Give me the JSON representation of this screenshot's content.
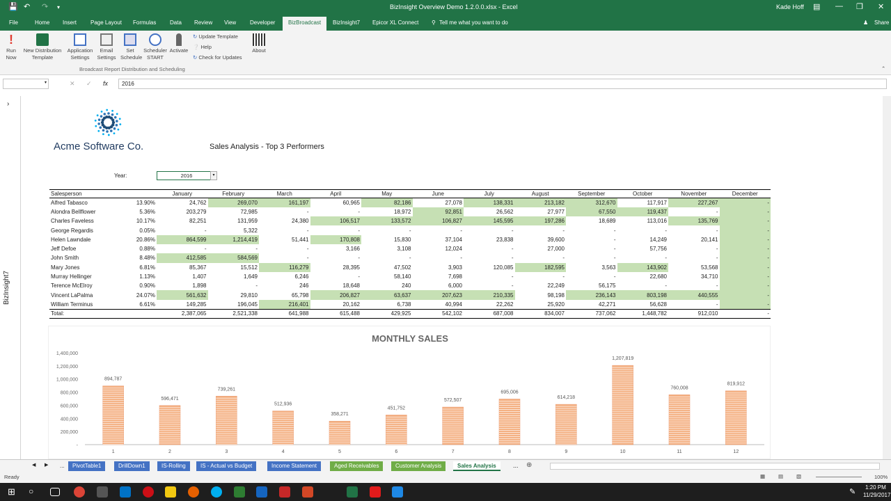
{
  "window": {
    "title": "BizInsight Overview Demo 1.2.0.0.xlsx - Excel",
    "user": "Kade Hoff",
    "share_label": "Share"
  },
  "ribbon_tabs": [
    "File",
    "Home",
    "Insert",
    "Page Layout",
    "Formulas",
    "Data",
    "Review",
    "View",
    "Developer",
    "BizBroadcast",
    "BizInsight7",
    "Epicor XL Connect"
  ],
  "tell_me": "Tell me what you want to do",
  "ribbon": {
    "run_now": "Run Now",
    "new_dist": "New Distribution Template",
    "app_settings": "Application Settings",
    "email_settings": "Email Settings",
    "set_schedule": "Set Schedule",
    "scheduler": "Scheduler START",
    "activate": "Activate",
    "update_template": "Update Template",
    "help": "Help",
    "check_updates": "Check for Updates",
    "about": "About",
    "group_label": "Broadcast Report Distribution and Scheduling"
  },
  "formula_bar": {
    "fx": "fx",
    "value": "2016"
  },
  "side_panel_label": "BizInsight7",
  "sheet": {
    "company": "Acme Software Co.",
    "title": "Sales Analysis - Top 3 Performers",
    "year_label": "Year:",
    "year_value": "2016"
  },
  "table": {
    "header_person": "Salesperson",
    "months": [
      "January",
      "February",
      "March",
      "April",
      "May",
      "June",
      "July",
      "August",
      "September",
      "October",
      "November",
      "December"
    ],
    "rows": [
      {
        "name": "Alfred Tabasco",
        "pct": "13.90%",
        "vals": [
          "24,762",
          "269,070",
          "161,197",
          "60,965",
          "82,186",
          "27,078",
          "138,331",
          "213,182",
          "312,670",
          "117,917",
          "227,267",
          "-"
        ],
        "hl": [
          1,
          2,
          4,
          6,
          7,
          8,
          10,
          11
        ]
      },
      {
        "name": "Alondra Bellflower",
        "pct": "5.36%",
        "vals": [
          "203,279",
          "72,985",
          "-",
          "-",
          "18,972",
          "92,851",
          "26,562",
          "27,977",
          "67,550",
          "119,437",
          "-",
          "-"
        ],
        "hl": [
          5,
          8,
          9,
          11
        ]
      },
      {
        "name": "Charles Faveless",
        "pct": "10.17%",
        "vals": [
          "82,251",
          "131,959",
          "24,380",
          "106,517",
          "133,572",
          "106,827",
          "145,595",
          "197,286",
          "18,689",
          "113,016",
          "135,769",
          "-"
        ],
        "hl": [
          3,
          4,
          5,
          6,
          7,
          10,
          11
        ]
      },
      {
        "name": "George Regardis",
        "pct": "0.05%",
        "vals": [
          "-",
          "5,322",
          "-",
          "-",
          "-",
          "-",
          "-",
          "-",
          "-",
          "-",
          "-",
          "-"
        ],
        "hl": [
          11
        ]
      },
      {
        "name": "Helen Lawndale",
        "pct": "20.86%",
        "vals": [
          "864,599",
          "1,214,419",
          "51,441",
          "170,808",
          "15,830",
          "37,104",
          "23,838",
          "39,600",
          "-",
          "14,249",
          "20,141",
          "-"
        ],
        "hl": [
          0,
          1,
          3,
          11
        ]
      },
      {
        "name": "Jeff Defoe",
        "pct": "0.88%",
        "vals": [
          "-",
          "-",
          "-",
          "3,166",
          "3,108",
          "12,024",
          "-",
          "27,000",
          "-",
          "57,756",
          "-",
          "-"
        ],
        "hl": [
          11
        ]
      },
      {
        "name": "John Smith",
        "pct": "8.48%",
        "vals": [
          "412,585",
          "584,569",
          "-",
          "-",
          "-",
          "-",
          "-",
          "-",
          "-",
          "-",
          "-",
          "-"
        ],
        "hl": [
          0,
          1,
          11
        ]
      },
      {
        "name": "Mary Jones",
        "pct": "6.81%",
        "vals": [
          "85,367",
          "15,512",
          "116,279",
          "28,395",
          "47,502",
          "3,903",
          "120,085",
          "182,595",
          "3,563",
          "143,902",
          "53,568",
          "-"
        ],
        "hl": [
          2,
          7,
          9,
          11
        ]
      },
      {
        "name": "Murray Hellinger",
        "pct": "1.13%",
        "vals": [
          "1,407",
          "1,649",
          "6,246",
          "-",
          "58,140",
          "7,698",
          "-",
          "-",
          "-",
          "22,680",
          "34,710",
          "-"
        ],
        "hl": [
          11
        ]
      },
      {
        "name": "Terence McElroy",
        "pct": "0.90%",
        "vals": [
          "1,898",
          "-",
          "246",
          "18,648",
          "240",
          "6,000",
          "-",
          "22,249",
          "56,175",
          "-",
          "-",
          "-"
        ],
        "hl": [
          11
        ]
      },
      {
        "name": "Vincent LaPalma",
        "pct": "24.07%",
        "vals": [
          "561,632",
          "29,810",
          "65,798",
          "206,827",
          "63,637",
          "207,623",
          "210,335",
          "98,198",
          "236,143",
          "803,198",
          "440,555",
          "-"
        ],
        "hl": [
          0,
          3,
          4,
          5,
          6,
          8,
          9,
          10,
          11
        ]
      },
      {
        "name": "William Terminus",
        "pct": "6.61%",
        "vals": [
          "149,285",
          "196,045",
          "216,401",
          "20,162",
          "6,738",
          "40,994",
          "22,262",
          "25,920",
          "42,271",
          "56,628",
          "-",
          "-"
        ],
        "hl": [
          2,
          11
        ]
      }
    ],
    "total_label": "Total:",
    "totals": [
      "2,387,065",
      "2,521,338",
      "641,988",
      "615,488",
      "429,925",
      "542,102",
      "687,008",
      "834,007",
      "737,062",
      "1,448,782",
      "912,010",
      "-"
    ]
  },
  "chart_data": {
    "type": "bar",
    "title": "MONTHLY SALES",
    "categories": [
      "1",
      "2",
      "3",
      "4",
      "5",
      "6",
      "7",
      "8",
      "9",
      "10",
      "11",
      "12"
    ],
    "values": [
      894787,
      596471,
      739261,
      512936,
      358271,
      451752,
      572507,
      695006,
      614218,
      1207819,
      760008,
      819912
    ],
    "value_labels": [
      "894,787",
      "596,471",
      "739,261",
      "512,936",
      "358,271",
      "451,752",
      "572,507",
      "695,006",
      "614,218",
      "1,207,819",
      "760,008",
      "819,912"
    ],
    "yticks": [
      "1,400,000",
      "1,200,000",
      "1,000,000",
      "800,000",
      "600,000",
      "400,000",
      "200,000",
      "-"
    ],
    "ylim": [
      0,
      1400000
    ],
    "bar_color": "#f4b183",
    "grid": false
  },
  "sheet_tabs": [
    {
      "label": "...",
      "color": "#f3f3f3",
      "text": "#333"
    },
    {
      "label": "PivotTable1",
      "color": "#4472c4",
      "text": "#fff"
    },
    {
      "label": "DrillDown1",
      "color": "#4472c4",
      "text": "#fff"
    },
    {
      "label": "IS-Rolling",
      "color": "#4472c4",
      "text": "#fff"
    },
    {
      "label": "IS - Actual vs Budget",
      "color": "#4472c4",
      "text": "#fff"
    },
    {
      "label": "Income Statement",
      "color": "#4472c4",
      "text": "#fff"
    },
    {
      "label": "Aged Receivables",
      "color": "#70ad47",
      "text": "#fff"
    },
    {
      "label": "Customer Analysis",
      "color": "#70ad47",
      "text": "#fff"
    },
    {
      "label": "Sales Analysis",
      "color": "#ffffff",
      "text": "#217346"
    }
  ],
  "status": {
    "ready": "Ready",
    "zoom": "100%"
  },
  "taskbar": {
    "time": "1:20 PM",
    "date": "11/29/2017"
  }
}
